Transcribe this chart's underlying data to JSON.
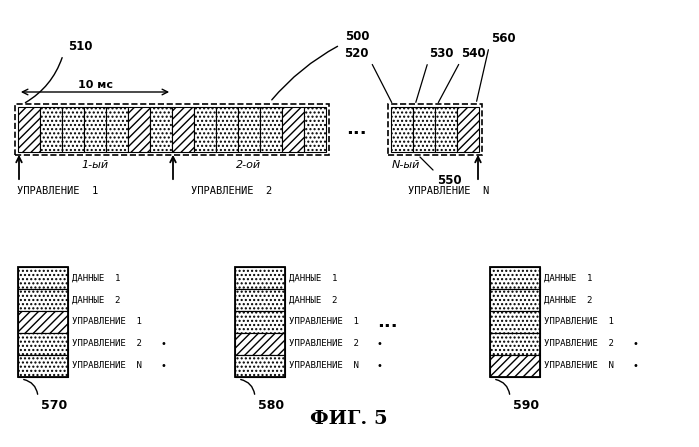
{
  "title": "ФИГ. 5",
  "label_500": "500",
  "label_510": "510",
  "label_520": "520",
  "label_530": "530",
  "label_540": "540",
  "label_550": "550",
  "label_560": "560",
  "label_570": "570",
  "label_580": "580",
  "label_590": "590",
  "text_10ms": "10 мс",
  "text_1st": "1-ый",
  "text_2nd": "2-ой",
  "text_nth": "N-ый",
  "ctrl1": "УПРАВЛЕНИЕ  1",
  "ctrl2": "УПРАВЛЕНИЕ  2",
  "ctrlN": "УПРАВЛЕНИЕ  N",
  "data1": "ДАННЫЕ  1",
  "data2": "ДАННЫЕ  2",
  "ctl1": "УПРАВЛЕНИЕ  1",
  "ctl2": "УПРАВЛЕНИЕ  2",
  "ctlN": "УПРАВЛЕНИЕ  N",
  "bg_color": "#ffffff"
}
